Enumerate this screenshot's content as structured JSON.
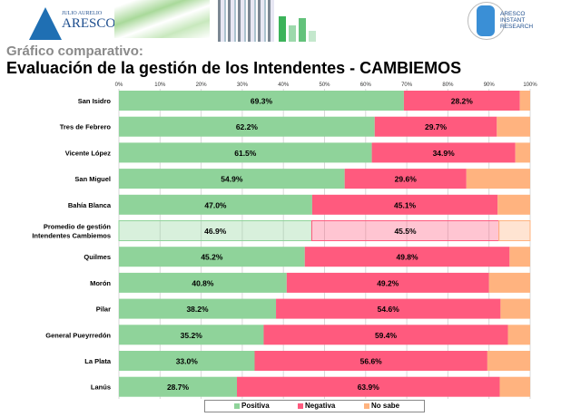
{
  "header": {
    "logo_left_small": "JULIO AURELIO",
    "logo_left_big": "ARESCO",
    "logo_right": "ARESCO INSTANT RESEARCH"
  },
  "subtitle": "Gráfico comparativo:",
  "title": "Evaluación de la gestión de los Intendentes - CAMBIEMOS",
  "chart_data": {
    "type": "bar",
    "orientation": "horizontal-stacked-100",
    "title": "Evaluación de la gestión de los Intendentes - CAMBIEMOS",
    "xlim": [
      0,
      100
    ],
    "xticks": [
      "0%",
      "10%",
      "20%",
      "30%",
      "40%",
      "50%",
      "60%",
      "70%",
      "80%",
      "90%",
      "100%"
    ],
    "categories": [
      "San Isidro",
      "Tres de Febrero",
      "Vicente López",
      "San Miguel",
      "Bahía Blanca",
      "Promedio de gestión Intendentes Cambiemos",
      "Quilmes",
      "Morón",
      "Pilar",
      "General Pueyrredón",
      "La Plata",
      "Lanús"
    ],
    "highlight_category": "Promedio de gestión Intendentes Cambiemos",
    "series": [
      {
        "name": "Positiva",
        "color": "#8fd39a",
        "values": [
          69.3,
          62.2,
          61.5,
          54.9,
          47.0,
          46.9,
          45.2,
          40.8,
          38.2,
          35.2,
          33.0,
          28.7
        ],
        "labels": [
          "69.3%",
          "62.2%",
          "61.5%",
          "54.9%",
          "47.0%",
          "46.9%",
          "45.2%",
          "40.8%",
          "38.2%",
          "35.2%",
          "33.0%",
          "28.7%"
        ]
      },
      {
        "name": "Negativa",
        "color": "#ff5a7e",
        "values": [
          28.2,
          29.7,
          34.9,
          29.6,
          45.1,
          45.5,
          49.8,
          49.2,
          54.6,
          59.4,
          56.6,
          63.9
        ],
        "labels": [
          "28.2%",
          "29.7%",
          "34.9%",
          "29.6%",
          "45.1%",
          "45.5%",
          "49.8%",
          "49.2%",
          "54.6%",
          "59.4%",
          "56.6%",
          "63.9%"
        ]
      },
      {
        "name": "No sabe",
        "color": "#ffb37f",
        "values": [
          2.5,
          8.1,
          3.6,
          15.5,
          7.9,
          7.6,
          5.0,
          10.0,
          7.2,
          5.4,
          10.4,
          7.4
        ]
      }
    ],
    "legend": "bottom",
    "grid": true
  }
}
